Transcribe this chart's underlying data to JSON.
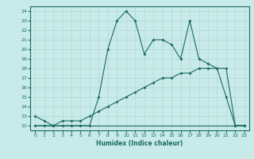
{
  "xlabel": "Humidex (Indice chaleur)",
  "ylabel": "",
  "background_color": "#c8eae8",
  "line_color": "#1a6b5e",
  "grid_color": "#b0d8d4",
  "xlim": [
    -0.5,
    23.5
  ],
  "ylim": [
    11.5,
    24.5
  ],
  "xticks": [
    0,
    1,
    2,
    3,
    4,
    5,
    6,
    7,
    8,
    9,
    10,
    11,
    12,
    13,
    14,
    15,
    16,
    17,
    18,
    19,
    20,
    21,
    22,
    23
  ],
  "yticks": [
    12,
    13,
    14,
    15,
    16,
    17,
    18,
    19,
    20,
    21,
    22,
    23,
    24
  ],
  "curve1_x": [
    0,
    1,
    2,
    3,
    4,
    5,
    6,
    7,
    8,
    9,
    10,
    11,
    12,
    13,
    14,
    15,
    16,
    17,
    18,
    19,
    20,
    21,
    22,
    23
  ],
  "curve1_y": [
    13.0,
    12.5,
    12.0,
    12.0,
    12.0,
    12.0,
    12.0,
    15.0,
    20.0,
    23.0,
    24.0,
    23.0,
    19.5,
    21.0,
    21.0,
    20.5,
    19.0,
    23.0,
    19.0,
    18.5,
    18.0,
    15.0,
    12.0,
    12.0
  ],
  "curve2_x": [
    0,
    1,
    2,
    3,
    4,
    5,
    6,
    7,
    8,
    9,
    10,
    11,
    12,
    13,
    14,
    15,
    16,
    17,
    18,
    19,
    20,
    21,
    22,
    23
  ],
  "curve2_y": [
    12.0,
    12.0,
    12.0,
    12.5,
    12.5,
    12.5,
    13.0,
    13.5,
    14.0,
    14.5,
    15.0,
    15.5,
    16.0,
    16.5,
    17.0,
    17.0,
    17.5,
    17.5,
    18.0,
    18.0,
    18.0,
    18.0,
    12.0,
    12.0
  ],
  "curve3_x": [
    0,
    22,
    23
  ],
  "curve3_y": [
    12.0,
    12.0,
    12.0
  ],
  "figwidth": 3.2,
  "figheight": 2.0,
  "dpi": 100
}
